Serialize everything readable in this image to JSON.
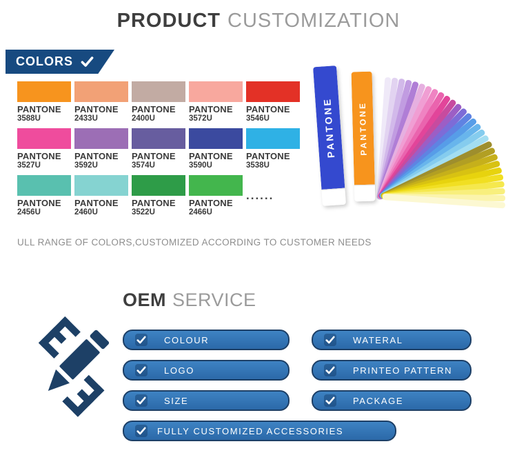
{
  "header": {
    "title_bold": "PRODUCT",
    "title_light": "CUSTOMIZATION"
  },
  "colors_section": {
    "badge_label": "COLORS",
    "caption": "ULL RANGE OF COLORS,CUSTOMIZED ACCORDING TO CUSTOMER NEEDS",
    "more_dots": "......"
  },
  "swatches": {
    "rows": [
      [
        {
          "name": "PANTONE",
          "code": "3588U",
          "color": "#f7941e"
        },
        {
          "name": "PANTONE",
          "code": "2433U",
          "color": "#f2a176"
        },
        {
          "name": "PANTONE",
          "code": "2400U",
          "color": "#c2aba3"
        },
        {
          "name": "PANTONE",
          "code": "3572U",
          "color": "#f8a89e"
        },
        {
          "name": "PANTONE",
          "code": "3546U",
          "color": "#e33126"
        }
      ],
      [
        {
          "name": "PANTONE",
          "code": "3527U",
          "color": "#ef4c9d"
        },
        {
          "name": "PANTONE",
          "code": "3592U",
          "color": "#9c6eb5"
        },
        {
          "name": "PANTONE",
          "code": "3574U",
          "color": "#675d9f"
        },
        {
          "name": "PANTONE",
          "code": "3590U",
          "color": "#3b4a9f"
        },
        {
          "name": "PANTONE",
          "code": "3538U",
          "color": "#2fb1e5"
        }
      ],
      [
        {
          "name": "PANTONE",
          "code": "2456U",
          "color": "#59c0af"
        },
        {
          "name": "PANTONE",
          "code": "2460U",
          "color": "#85d3d1"
        },
        {
          "name": "PANTONE",
          "code": "3522U",
          "color": "#2e9c48"
        },
        {
          "name": "PANTONE",
          "code": "2466U",
          "color": "#43b64d"
        }
      ]
    ]
  },
  "fan_deck": {
    "spines": [
      {
        "label": "PANTONE",
        "color": "#3449cf"
      },
      {
        "label": "PANTONE",
        "color": "#f7941d"
      }
    ],
    "strip_colors": [
      "#efe9f8",
      "#e2d3f1",
      "#d2b9ea",
      "#c19ce1",
      "#b07ed6",
      "#e6b0e0",
      "#f09ed3",
      "#ef83c2",
      "#ea64ae",
      "#e2459a",
      "#c74b9f",
      "#9c5ec5",
      "#7d6cd7",
      "#5f83e2",
      "#579de8",
      "#68b5ec",
      "#85ccee",
      "#a3def1",
      "#9e8e2d",
      "#b29f23",
      "#c6b01b",
      "#d8c212",
      "#e7d30e",
      "#f1df22",
      "#f5e84d",
      "#f8ef7d",
      "#fbf4ac",
      "#fcf8d2"
    ]
  },
  "oem": {
    "title_bold": "OEM",
    "title_light": "SERVICE",
    "left_buttons": [
      "COLOUR",
      "LOGO",
      "SIZE"
    ],
    "right_buttons": [
      "WATERAL",
      "PRINTEO PATTERN",
      "PACKAGE"
    ],
    "bottom_button": "FULLY CUSTOMIZED ACCESSORIES"
  }
}
